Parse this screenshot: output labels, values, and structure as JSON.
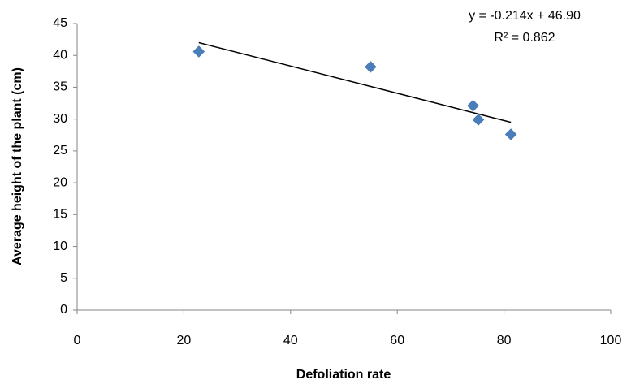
{
  "chart_data": {
    "type": "scatter",
    "xlabel": "Defoliation rate",
    "ylabel": "Average height of the plant (cm)",
    "series": [
      {
        "color": "#4a7ebb",
        "x": [
          22.8,
          55,
          74.2,
          75.2,
          81.3
        ],
        "values": [
          40.6,
          38.2,
          32.1,
          29.9,
          27.6
        ]
      }
    ],
    "trendline": {
      "color": "#000000",
      "x": [
        22.8,
        81.3
      ],
      "values": [
        42.0,
        29.5
      ],
      "equation": "y = -0.214x + 46.90",
      "r_squared": "R² = 0.862"
    },
    "xlim": [
      0,
      100
    ],
    "xticks": [
      0,
      20,
      40,
      60,
      80,
      100
    ],
    "ylim": [
      0,
      45
    ],
    "yticks": [
      0,
      5,
      10,
      15,
      20,
      25,
      30,
      35,
      40,
      45
    ],
    "grid": false
  }
}
